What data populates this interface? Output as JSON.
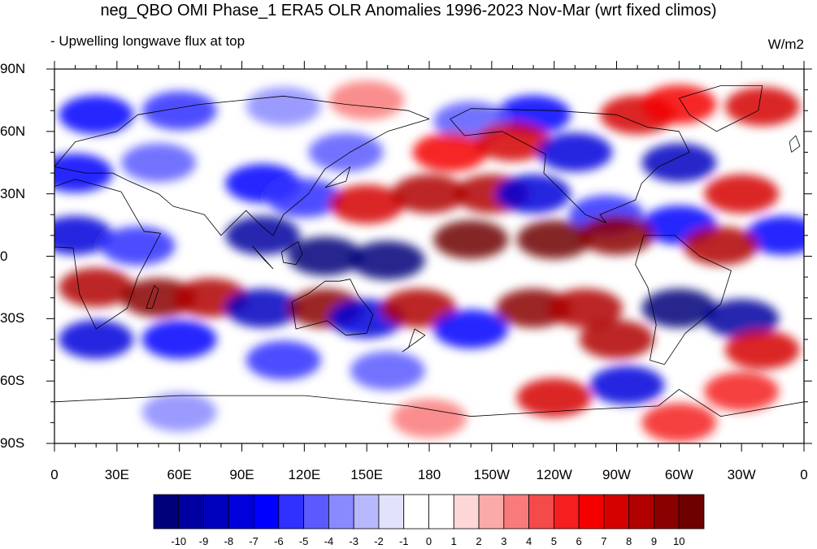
{
  "header": {
    "title": "neg_QBO OMI Phase_1 ERA5 OLR Anomalies 1996-2023 Nov-Mar (wrt fixed climos)",
    "subtitle": "- Upwelling longwave flux at top",
    "units": "W/m2"
  },
  "map": {
    "projection": "cylindrical equidistant",
    "lon_range": [
      0,
      360
    ],
    "lat_range": [
      -90,
      90
    ],
    "lat_labels": [
      "90N",
      "60N",
      "30N",
      "0",
      "30S",
      "60S",
      "90S"
    ],
    "lon_labels": [
      "0",
      "30E",
      "60E",
      "90E",
      "120E",
      "150E",
      "180",
      "150W",
      "120W",
      "90W",
      "60W",
      "30W",
      "0"
    ]
  },
  "colorbar": {
    "labels": [
      "-10",
      "-9",
      "-8",
      "-7",
      "-6",
      "-5",
      "-4",
      "-3",
      "-2",
      "-1",
      "0",
      "1",
      "2",
      "3",
      "4",
      "5",
      "6",
      "7",
      "8",
      "9",
      "10"
    ],
    "colors": [
      "#00007a",
      "#0000a0",
      "#0000bf",
      "#0000dc",
      "#0000ff",
      "#3030ff",
      "#5a5aff",
      "#8a8aff",
      "#b8b8ff",
      "#e2e2fb",
      "#ffffff",
      "#ffffff",
      "#fdd7d7",
      "#fbaaaa",
      "#f97a7a",
      "#f54a4a",
      "#f51f1f",
      "#f50000",
      "#d50000",
      "#b00000",
      "#8a0000",
      "#6e0000"
    ]
  },
  "anomaly_field": [
    {
      "lon": 20,
      "lat": 68,
      "value": -6
    },
    {
      "lon": 60,
      "lat": 70,
      "value": -5
    },
    {
      "lon": 110,
      "lat": 72,
      "value": -3
    },
    {
      "lon": 150,
      "lat": 75,
      "value": 3
    },
    {
      "lon": 280,
      "lat": 68,
      "value": 7
    },
    {
      "lon": 300,
      "lat": 73,
      "value": 6
    },
    {
      "lon": 340,
      "lat": 72,
      "value": 7
    },
    {
      "lon": 230,
      "lat": 68,
      "value": -6
    },
    {
      "lon": 200,
      "lat": 65,
      "value": -4
    },
    {
      "lon": 140,
      "lat": 50,
      "value": -4
    },
    {
      "lon": 190,
      "lat": 50,
      "value": 6
    },
    {
      "lon": 220,
      "lat": 55,
      "value": 7
    },
    {
      "lon": 250,
      "lat": 50,
      "value": -7
    },
    {
      "lon": 300,
      "lat": 45,
      "value": -8
    },
    {
      "lon": 330,
      "lat": 30,
      "value": 7
    },
    {
      "lon": 10,
      "lat": 40,
      "value": -6
    },
    {
      "lon": 50,
      "lat": 45,
      "value": -4
    },
    {
      "lon": 100,
      "lat": 35,
      "value": -6
    },
    {
      "lon": 120,
      "lat": 28,
      "value": -5
    },
    {
      "lon": 150,
      "lat": 25,
      "value": 7
    },
    {
      "lon": 180,
      "lat": 30,
      "value": 8
    },
    {
      "lon": 210,
      "lat": 30,
      "value": 8
    },
    {
      "lon": 230,
      "lat": 30,
      "value": -7
    },
    {
      "lon": 265,
      "lat": 20,
      "value": -5
    },
    {
      "lon": 300,
      "lat": 15,
      "value": -6
    },
    {
      "lon": 350,
      "lat": 10,
      "value": -6
    },
    {
      "lon": 10,
      "lat": 10,
      "value": -7
    },
    {
      "lon": 40,
      "lat": 5,
      "value": -5
    },
    {
      "lon": 100,
      "lat": 10,
      "value": -9
    },
    {
      "lon": 130,
      "lat": 0,
      "value": -10
    },
    {
      "lon": 160,
      "lat": -2,
      "value": -10
    },
    {
      "lon": 200,
      "lat": 8,
      "value": 10
    },
    {
      "lon": 240,
      "lat": 8,
      "value": 10
    },
    {
      "lon": 270,
      "lat": 10,
      "value": 9
    },
    {
      "lon": 320,
      "lat": 5,
      "value": 8
    },
    {
      "lon": 300,
      "lat": -25,
      "value": -10
    },
    {
      "lon": 330,
      "lat": -30,
      "value": -9
    },
    {
      "lon": 20,
      "lat": -15,
      "value": 8
    },
    {
      "lon": 50,
      "lat": -20,
      "value": 9
    },
    {
      "lon": 75,
      "lat": -20,
      "value": 8
    },
    {
      "lon": 100,
      "lat": -25,
      "value": -8
    },
    {
      "lon": 130,
      "lat": -25,
      "value": 9
    },
    {
      "lon": 150,
      "lat": -30,
      "value": -7
    },
    {
      "lon": 175,
      "lat": -25,
      "value": 8
    },
    {
      "lon": 200,
      "lat": -35,
      "value": -6
    },
    {
      "lon": 230,
      "lat": -25,
      "value": 9
    },
    {
      "lon": 255,
      "lat": -25,
      "value": 8
    },
    {
      "lon": 270,
      "lat": -40,
      "value": 8
    },
    {
      "lon": 340,
      "lat": -45,
      "value": 7
    },
    {
      "lon": 20,
      "lat": -40,
      "value": -7
    },
    {
      "lon": 60,
      "lat": -40,
      "value": -6
    },
    {
      "lon": 110,
      "lat": -50,
      "value": -5
    },
    {
      "lon": 160,
      "lat": -55,
      "value": -4
    },
    {
      "lon": 240,
      "lat": -68,
      "value": 7
    },
    {
      "lon": 275,
      "lat": -62,
      "value": -7
    },
    {
      "lon": 330,
      "lat": -65,
      "value": 5
    },
    {
      "lon": 300,
      "lat": -80,
      "value": 5
    },
    {
      "lon": 60,
      "lat": -75,
      "value": -3
    },
    {
      "lon": 180,
      "lat": -78,
      "value": 3
    }
  ]
}
